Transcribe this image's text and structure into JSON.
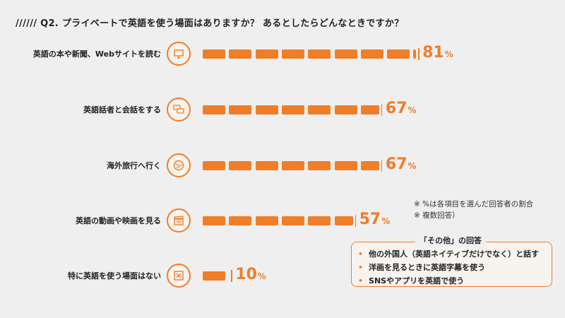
{
  "title": "////// Q2. プライベートで英語を使う場面はありますか？ あるとしたらどんなときですか？",
  "chart_data": {
    "type": "bar",
    "orientation": "horizontal",
    "categories": [
      "英語の本や新聞、Webサイトを読む",
      "英語話者と会話をする",
      "海外旅行へ行く",
      "英語の動画や映画を見る",
      "特に英語を使う場面はない"
    ],
    "values": [
      81,
      67,
      67,
      57,
      10
    ],
    "unit": "%",
    "color": "#f07d28",
    "xlim": [
      0,
      100
    ]
  },
  "icons": [
    "monitor-icon",
    "chat-bubbles-icon",
    "globe-icon",
    "clapperboard-icon",
    "cross-box-icon"
  ],
  "notes": [
    "※ %は各項目を選んだ回答者の割合",
    "※ 複数回答）"
  ],
  "other": {
    "title": "「その他」の回答",
    "items": [
      "他の外国人（英語ネイティブだけでなく）と話す",
      "洋画を見るときに英語字幕を使う",
      "SNSやアプリを英語で使う"
    ]
  }
}
